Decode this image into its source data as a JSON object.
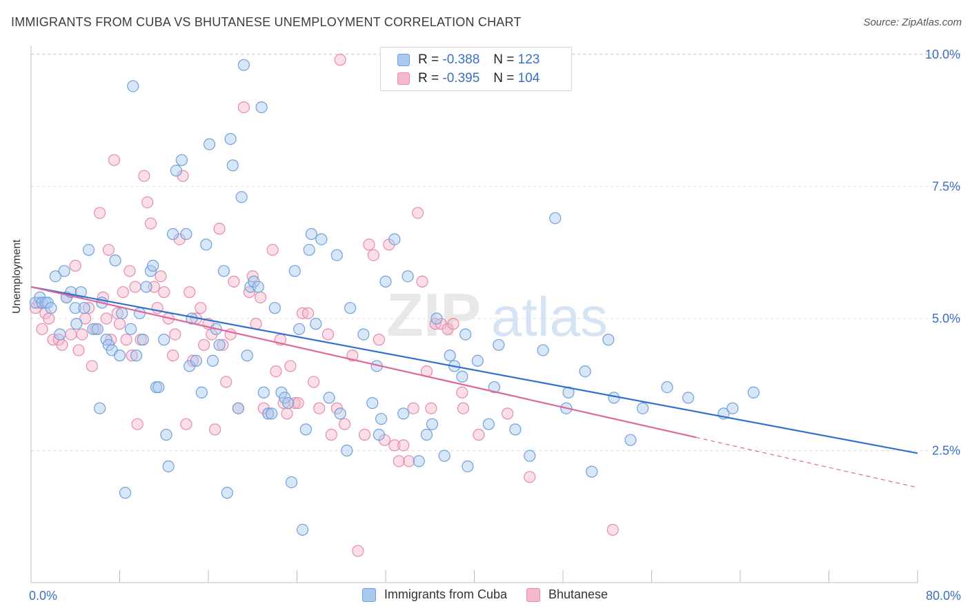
{
  "header": {
    "title": "IMMIGRANTS FROM CUBA VS BHUTANESE UNEMPLOYMENT CORRELATION CHART",
    "source": "Source: ZipAtlas.com"
  },
  "legend_top": {
    "rows": [
      {
        "r_label": "R =",
        "r_value": "-0.388",
        "n_label": "N =",
        "n_value": "123"
      },
      {
        "r_label": "R =",
        "r_value": "-0.395",
        "n_label": "N =",
        "n_value": "104"
      }
    ]
  },
  "watermark": {
    "part1": "ZIP",
    "part2": "atlas"
  },
  "colors": {
    "blue_fill": "#a9c9f0",
    "blue_stroke": "#6f9fdc",
    "blue_line": "#2f6fd0",
    "pink_fill": "#f5b8cc",
    "pink_stroke": "#e889aa",
    "pink_line": "#e0659a",
    "grid": "#dcdcdc",
    "tick_label": "#3a6fc4"
  },
  "chart_data": {
    "type": "scatter",
    "title": "IMMIGRANTS FROM CUBA VS BHUTANESE UNEMPLOYMENT CORRELATION CHART",
    "xlabel": "",
    "ylabel": "Unemployment",
    "xlim": [
      0,
      80
    ],
    "ylim": [
      0,
      10.5
    ],
    "x_tick_labels": [
      "0.0%",
      "80.0%"
    ],
    "y_ticks": [
      2.5,
      5.0,
      7.5,
      10.0
    ],
    "y_tick_labels": [
      "2.5%",
      "5.0%",
      "7.5%",
      "10.0%"
    ],
    "grid": true,
    "legend_position": "bottom",
    "series": [
      {
        "name": "Immigrants from Cuba",
        "color": "#6f9fdc",
        "trend": {
          "x": [
            0,
            80
          ],
          "y": [
            5.6,
            2.45
          ]
        },
        "points": [
          [
            0.4,
            5.3
          ],
          [
            0.8,
            5.4
          ],
          [
            1.0,
            5.3
          ],
          [
            1.3,
            5.3
          ],
          [
            1.5,
            5.3
          ],
          [
            1.8,
            5.2
          ],
          [
            2.2,
            5.8
          ],
          [
            2.6,
            4.7
          ],
          [
            3.0,
            5.9
          ],
          [
            3.2,
            5.4
          ],
          [
            3.6,
            5.5
          ],
          [
            4.0,
            5.2
          ],
          [
            4.1,
            4.9
          ],
          [
            4.5,
            5.5
          ],
          [
            4.8,
            5.2
          ],
          [
            5.2,
            6.3
          ],
          [
            5.6,
            4.8
          ],
          [
            6.0,
            4.8
          ],
          [
            6.2,
            3.3
          ],
          [
            6.4,
            5.3
          ],
          [
            6.8,
            4.6
          ],
          [
            7.0,
            4.5
          ],
          [
            7.3,
            4.4
          ],
          [
            7.6,
            6.1
          ],
          [
            8.0,
            4.3
          ],
          [
            8.2,
            5.1
          ],
          [
            8.5,
            1.7
          ],
          [
            9.0,
            4.8
          ],
          [
            9.2,
            9.4
          ],
          [
            9.5,
            4.3
          ],
          [
            9.8,
            5.1
          ],
          [
            10.1,
            4.6
          ],
          [
            10.4,
            5.6
          ],
          [
            10.8,
            5.9
          ],
          [
            11.0,
            6.0
          ],
          [
            11.3,
            3.7
          ],
          [
            11.5,
            3.7
          ],
          [
            12.0,
            4.6
          ],
          [
            12.2,
            2.8
          ],
          [
            12.4,
            2.2
          ],
          [
            12.8,
            6.6
          ],
          [
            13.1,
            7.8
          ],
          [
            13.6,
            8.0
          ],
          [
            14.0,
            6.6
          ],
          [
            14.3,
            4.1
          ],
          [
            14.5,
            5.0
          ],
          [
            14.9,
            4.2
          ],
          [
            15.4,
            3.6
          ],
          [
            15.8,
            6.4
          ],
          [
            16.1,
            8.3
          ],
          [
            16.4,
            4.2
          ],
          [
            16.7,
            4.8
          ],
          [
            17.0,
            4.5
          ],
          [
            17.4,
            5.9
          ],
          [
            17.7,
            1.7
          ],
          [
            18.0,
            8.4
          ],
          [
            18.2,
            7.9
          ],
          [
            18.7,
            3.3
          ],
          [
            19.0,
            7.3
          ],
          [
            19.2,
            9.8
          ],
          [
            19.5,
            4.3
          ],
          [
            19.8,
            5.6
          ],
          [
            20.1,
            5.7
          ],
          [
            20.5,
            5.6
          ],
          [
            20.8,
            9.0
          ],
          [
            21.0,
            3.6
          ],
          [
            21.4,
            3.2
          ],
          [
            21.7,
            3.2
          ],
          [
            22.0,
            5.2
          ],
          [
            22.6,
            3.6
          ],
          [
            22.9,
            3.5
          ],
          [
            23.2,
            3.4
          ],
          [
            23.5,
            1.9
          ],
          [
            23.8,
            5.9
          ],
          [
            24.2,
            4.8
          ],
          [
            24.5,
            1.0
          ],
          [
            24.8,
            2.9
          ],
          [
            25.1,
            6.3
          ],
          [
            25.3,
            6.6
          ],
          [
            25.7,
            4.9
          ],
          [
            26.2,
            6.5
          ],
          [
            26.9,
            3.5
          ],
          [
            27.6,
            6.2
          ],
          [
            27.9,
            3.2
          ],
          [
            28.5,
            2.5
          ],
          [
            28.8,
            5.2
          ],
          [
            30.0,
            4.7
          ],
          [
            30.8,
            3.4
          ],
          [
            31.2,
            4.1
          ],
          [
            31.4,
            2.8
          ],
          [
            31.6,
            3.1
          ],
          [
            32.0,
            5.7
          ],
          [
            32.8,
            6.5
          ],
          [
            33.6,
            3.2
          ],
          [
            34.0,
            5.8
          ],
          [
            35.0,
            2.3
          ],
          [
            35.7,
            2.8
          ],
          [
            36.2,
            3.0
          ],
          [
            36.6,
            5.0
          ],
          [
            37.3,
            2.4
          ],
          [
            37.8,
            4.3
          ],
          [
            38.2,
            4.1
          ],
          [
            38.9,
            3.9
          ],
          [
            39.2,
            4.7
          ],
          [
            39.4,
            2.2
          ],
          [
            40.3,
            4.2
          ],
          [
            41.3,
            3.0
          ],
          [
            41.8,
            3.7
          ],
          [
            42.2,
            4.5
          ],
          [
            43.7,
            2.9
          ],
          [
            45.0,
            2.4
          ],
          [
            46.2,
            4.4
          ],
          [
            47.3,
            6.9
          ],
          [
            48.3,
            3.3
          ],
          [
            48.5,
            3.6
          ],
          [
            50.0,
            4.0
          ],
          [
            50.6,
            2.1
          ],
          [
            52.1,
            4.6
          ],
          [
            52.6,
            3.5
          ],
          [
            54.1,
            2.7
          ],
          [
            55.2,
            3.3
          ],
          [
            57.4,
            3.7
          ],
          [
            59.3,
            3.5
          ],
          [
            62.5,
            3.2
          ],
          [
            63.3,
            3.3
          ],
          [
            65.2,
            3.6
          ]
        ]
      },
      {
        "name": "Bhutanese",
        "color": "#e889aa",
        "trend": {
          "x": [
            0,
            60
          ],
          "y": [
            5.6,
            2.75
          ]
        },
        "trend_extension": {
          "x": [
            60,
            80
          ],
          "y": [
            2.75,
            1.8
          ]
        },
        "points": [
          [
            0.4,
            5.2
          ],
          [
            0.7,
            5.3
          ],
          [
            1.0,
            4.8
          ],
          [
            1.3,
            5.1
          ],
          [
            1.6,
            5.0
          ],
          [
            2.0,
            4.6
          ],
          [
            2.5,
            4.6
          ],
          [
            2.8,
            4.5
          ],
          [
            3.2,
            5.4
          ],
          [
            3.6,
            4.7
          ],
          [
            4.0,
            6.0
          ],
          [
            4.3,
            4.4
          ],
          [
            4.6,
            4.7
          ],
          [
            4.9,
            5.0
          ],
          [
            5.2,
            5.2
          ],
          [
            5.5,
            4.1
          ],
          [
            5.8,
            4.8
          ],
          [
            6.2,
            7.0
          ],
          [
            6.5,
            5.4
          ],
          [
            6.8,
            5.0
          ],
          [
            7.0,
            6.3
          ],
          [
            7.2,
            4.6
          ],
          [
            7.5,
            8.0
          ],
          [
            7.8,
            5.1
          ],
          [
            8.0,
            4.9
          ],
          [
            8.3,
            5.5
          ],
          [
            8.6,
            4.6
          ],
          [
            8.9,
            5.9
          ],
          [
            9.1,
            4.3
          ],
          [
            9.4,
            5.6
          ],
          [
            9.6,
            3.0
          ],
          [
            9.9,
            4.6
          ],
          [
            10.2,
            7.7
          ],
          [
            10.5,
            7.2
          ],
          [
            10.8,
            6.8
          ],
          [
            11.1,
            5.6
          ],
          [
            11.4,
            5.2
          ],
          [
            11.7,
            5.8
          ],
          [
            12.0,
            5.5
          ],
          [
            12.4,
            5.0
          ],
          [
            12.8,
            4.3
          ],
          [
            13.0,
            4.7
          ],
          [
            13.4,
            6.5
          ],
          [
            13.7,
            7.7
          ],
          [
            14.0,
            3.0
          ],
          [
            14.3,
            5.5
          ],
          [
            14.6,
            4.2
          ],
          [
            14.9,
            5.0
          ],
          [
            15.3,
            5.2
          ],
          [
            15.6,
            4.5
          ],
          [
            16.0,
            4.9
          ],
          [
            16.3,
            4.7
          ],
          [
            16.6,
            2.9
          ],
          [
            17.0,
            6.7
          ],
          [
            17.3,
            4.5
          ],
          [
            17.6,
            3.8
          ],
          [
            18.0,
            4.7
          ],
          [
            18.3,
            5.7
          ],
          [
            18.7,
            3.3
          ],
          [
            19.2,
            9.0
          ],
          [
            19.7,
            5.5
          ],
          [
            20.0,
            5.8
          ],
          [
            20.3,
            4.9
          ],
          [
            20.7,
            5.4
          ],
          [
            21.0,
            3.3
          ],
          [
            21.4,
            3.2
          ],
          [
            21.8,
            6.3
          ],
          [
            22.1,
            4.0
          ],
          [
            22.5,
            4.6
          ],
          [
            22.8,
            3.4
          ],
          [
            23.1,
            3.2
          ],
          [
            23.4,
            4.1
          ],
          [
            23.8,
            3.4
          ],
          [
            24.1,
            3.4
          ],
          [
            24.5,
            5.1
          ],
          [
            25.0,
            5.1
          ],
          [
            25.5,
            3.8
          ],
          [
            26.0,
            3.3
          ],
          [
            26.8,
            4.7
          ],
          [
            27.1,
            2.8
          ],
          [
            27.6,
            3.3
          ],
          [
            27.9,
            9.9
          ],
          [
            28.3,
            3.0
          ],
          [
            29.0,
            4.3
          ],
          [
            29.5,
            0.6
          ],
          [
            30.1,
            2.8
          ],
          [
            30.5,
            6.4
          ],
          [
            30.9,
            6.2
          ],
          [
            31.4,
            4.6
          ],
          [
            31.9,
            2.7
          ],
          [
            32.3,
            6.4
          ],
          [
            32.8,
            2.6
          ],
          [
            33.2,
            2.3
          ],
          [
            33.6,
            2.6
          ],
          [
            34.1,
            2.3
          ],
          [
            34.5,
            3.3
          ],
          [
            34.9,
            7.0
          ],
          [
            35.3,
            5.7
          ],
          [
            35.7,
            4.0
          ],
          [
            36.1,
            3.3
          ],
          [
            36.5,
            4.9
          ],
          [
            37.0,
            4.9
          ],
          [
            37.6,
            4.8
          ],
          [
            38.1,
            4.9
          ]
        ],
        "extra_points": [
          [
            38.9,
            3.6
          ],
          [
            40.4,
            2.8
          ],
          [
            43.0,
            3.2
          ],
          [
            45.0,
            2.0
          ],
          [
            52.5,
            1.0
          ],
          [
            39.0,
            3.3
          ]
        ]
      }
    ]
  },
  "bottom_legend": {
    "items": [
      {
        "label": "Immigrants from Cuba"
      },
      {
        "label": "Bhutanese"
      }
    ]
  }
}
